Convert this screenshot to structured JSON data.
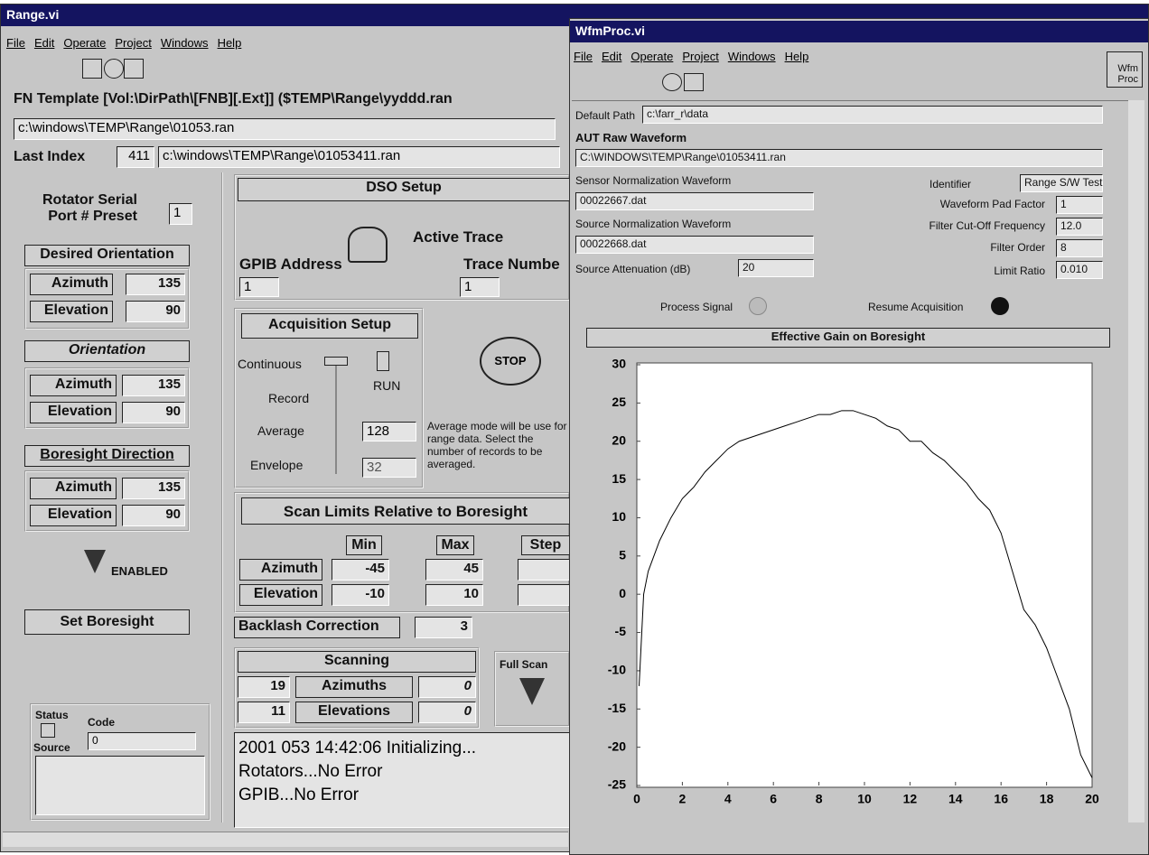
{
  "range_window": {
    "title": "Range.vi",
    "menu": [
      "File",
      "Edit",
      "Operate",
      "Project",
      "Windows",
      "Help"
    ],
    "fn_template": "FN Template  [Vol:\\DirPath\\[FNB][.Ext]]   ($TEMP\\Range\\yyddd.ran",
    "file_path": "c:\\windows\\TEMP\\Range\\01053.ran",
    "last_index": {
      "label": "Last Index",
      "value": 411,
      "path": "c:\\windows\\TEMP\\Range\\01053411.ran"
    },
    "rotator_port": {
      "label_1": "Rotator Serial",
      "label_2": "Port # Preset",
      "value": 1
    },
    "desired_orientation": {
      "title": "Desired Orientation",
      "azimuth_label": "Azimuth",
      "azimuth": 135,
      "elevation_label": "Elevation",
      "elevation": 90
    },
    "orientation": {
      "title": "Orientation",
      "azimuth_label": "Azimuth",
      "azimuth": 135,
      "elevation_label": "Elevation",
      "elevation": 90
    },
    "boresight_direction": {
      "title": "Boresight Direction",
      "azimuth_label": "Azimuth",
      "azimuth": 135,
      "elevation_label": "Elevation",
      "elevation": 90
    },
    "enabled": "ENABLED",
    "set_boresight": "Set Boresight",
    "status": {
      "status": "Status",
      "code": "Code",
      "code_value": 0,
      "source": "Source"
    },
    "dso_setup": {
      "title": "DSO Setup",
      "active_trace": "Active Trace",
      "gpib_label": "GPIB Address",
      "gpib": 1,
      "trace_label": "Trace Numbe",
      "trace": 1
    },
    "acquisition_setup": {
      "title": "Acquisition Setup",
      "modes": [
        "Continuous",
        "Record",
        "Average",
        "Envelope"
      ],
      "run": "RUN",
      "average": 128,
      "envelope": 32,
      "stop": "STOP",
      "note": "Average mode will be use for range data. Select the number of records to be averaged."
    },
    "scan_limits": {
      "title": "Scan Limits Relative to Boresight",
      "columns": [
        "Min",
        "Max",
        "Step"
      ],
      "rows": [
        {
          "label": "Azimuth",
          "min": -45,
          "max": 45
        },
        {
          "label": "Elevation",
          "min": -10,
          "max": 10
        }
      ]
    },
    "backlash": {
      "label": "Backlash Correction",
      "value": 3
    },
    "scanning": {
      "title": "Scanning",
      "rows": [
        {
          "count": 19,
          "label": "Azimuths",
          "value": 0
        },
        {
          "count": 11,
          "label": "Elevations",
          "value": 0
        }
      ]
    },
    "full_scan": "Full Scan",
    "log": [
      "2001 053 14:42:06 Initializing...",
      "Rotators...No Error",
      "GPIB...No Error"
    ]
  },
  "wfmproc_window": {
    "title": "WfmProc.vi",
    "menu": [
      "File",
      "Edit",
      "Operate",
      "Project",
      "Windows",
      "Help"
    ],
    "icon_1": "Wfm",
    "icon_2": "Proc",
    "default_path_label": "Default Path",
    "default_path": "c:\\farr_r\\data",
    "aut_label": "AUT Raw Waveform",
    "aut_path": "C:\\WINDOWS\\TEMP\\Range\\01053411.ran",
    "sensor_label": "Sensor Normalization Waveform",
    "sensor_file": "00022667.dat",
    "source_label": "Source Normalization Waveform",
    "source_file": "00022668.dat",
    "attenuation_label": "Source Attenuation (dB)",
    "attenuation": 20,
    "identifier_label": "Identifier",
    "identifier": "Range S/W Test",
    "pad_label": "Waveform Pad Factor",
    "pad": 1,
    "cutoff_label": "Filter Cut-Off Frequency",
    "cutoff": "12.0",
    "order_label": "Filter Order",
    "order": 8,
    "limit_label": "Limit Ratio",
    "limit": "0.010",
    "process_signal": "Process Signal",
    "resume": "Resume Acquisition"
  },
  "chart_data": {
    "type": "line",
    "title": "Effective Gain on Boresight",
    "color": "#000000",
    "grid": false,
    "x": [
      0.1,
      0.3,
      0.5,
      1,
      1.5,
      2,
      2.5,
      3,
      3.5,
      4,
      4.5,
      5,
      5.5,
      6,
      6.5,
      7,
      7.5,
      8,
      8.5,
      9,
      9.5,
      10,
      10.5,
      11,
      11.5,
      12,
      12.5,
      13,
      13.5,
      14,
      14.5,
      15,
      15.5,
      16,
      16.5,
      17,
      17.5,
      18,
      18.5,
      19,
      19.5,
      20
    ],
    "values": [
      -12,
      0,
      3,
      7,
      10,
      12.5,
      14,
      16,
      17.5,
      19,
      20,
      20.5,
      21,
      21.5,
      22,
      22.5,
      23,
      23.5,
      23.5,
      24,
      24,
      23.5,
      23,
      22,
      21.5,
      20,
      20,
      18.5,
      17.5,
      16,
      14.5,
      12.5,
      11,
      8,
      3,
      -2,
      -4,
      -7,
      -11,
      -15,
      -21,
      -24
    ],
    "xlim": [
      0,
      20
    ],
    "ylim": [
      -25,
      30
    ],
    "xticks": [
      0,
      2,
      4,
      6,
      8,
      10,
      12,
      14,
      16,
      18,
      20
    ],
    "yticks": [
      -25,
      -20,
      -15,
      -10,
      -5,
      0,
      5,
      10,
      15,
      20,
      25,
      30
    ]
  }
}
